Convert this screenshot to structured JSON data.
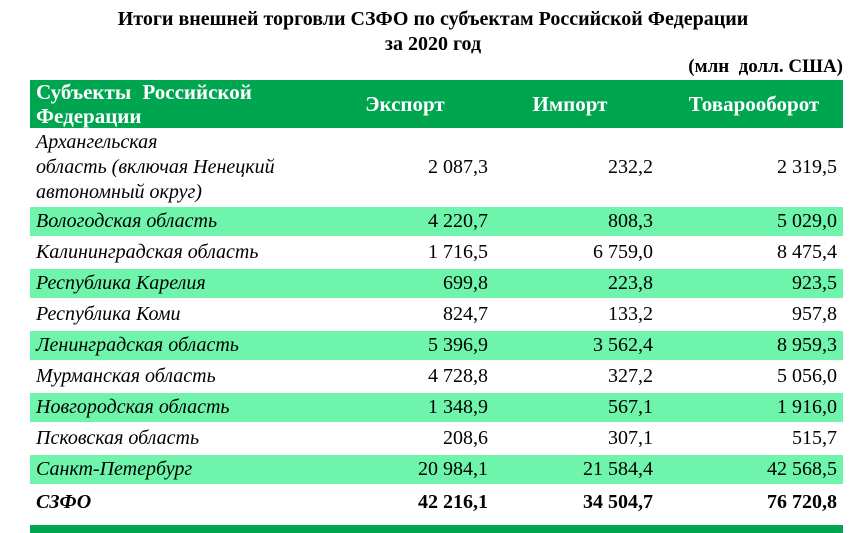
{
  "title": {
    "line1": "Итоги внешней торговли СЗФО по субъектам Российской Федерации",
    "line2": "за 2020 год",
    "units": "(млн  долл. США)"
  },
  "colors": {
    "header_green": "#00A550",
    "row_highlight_mint": "#6FF5AB",
    "header_text": "#FFFFFF",
    "body_text": "#000000"
  },
  "table": {
    "columns": {
      "region": "Субъекты Российской\nФедерации",
      "export": "Экспорт",
      "import": "Импорт",
      "turnover": "Товарооборот"
    },
    "rows": [
      {
        "name": "Архангельская\nобласть (включая Ненецкий автономный округ)",
        "export": "2 087,3",
        "import": "232,2",
        "turnover": "2 319,5",
        "highlight": false,
        "total": false
      },
      {
        "name": "Вологодская область",
        "export": "4 220,7",
        "import": "808,3",
        "turnover": "5 029,0",
        "highlight": true,
        "total": false
      },
      {
        "name": "Калининградская область",
        "export": "1 716,5",
        "import": "6 759,0",
        "turnover": "8 475,4",
        "highlight": false,
        "total": false
      },
      {
        "name": "Республика Карелия",
        "export": "699,8",
        "import": "223,8",
        "turnover": "923,5",
        "highlight": true,
        "total": false
      },
      {
        "name": "Республика Коми",
        "export": "824,7",
        "import": "133,2",
        "turnover": "957,8",
        "highlight": false,
        "total": false
      },
      {
        "name": "Ленинградская область",
        "export": "5 396,9",
        "import": "3 562,4",
        "turnover": "8 959,3",
        "highlight": true,
        "total": false
      },
      {
        "name": "Мурманская область",
        "export": "4 728,8",
        "import": "327,2",
        "turnover": "5 056,0",
        "highlight": false,
        "total": false
      },
      {
        "name": "Новгородская область",
        "export": "1 348,9",
        "import": "567,1",
        "turnover": "1 916,0",
        "highlight": true,
        "total": false
      },
      {
        "name": "Псковская область",
        "export": "208,6",
        "import": "307,1",
        "turnover": "515,7",
        "highlight": false,
        "total": false
      },
      {
        "name": "Санкт-Петербург",
        "export": "20 984,1",
        "import": "21 584,4",
        "turnover": "42 568,5",
        "highlight": true,
        "total": false
      },
      {
        "name": "СЗФО",
        "export": "42 216,1",
        "import": "34 504,7",
        "turnover": "76 720,8",
        "highlight": false,
        "total": true
      }
    ]
  }
}
